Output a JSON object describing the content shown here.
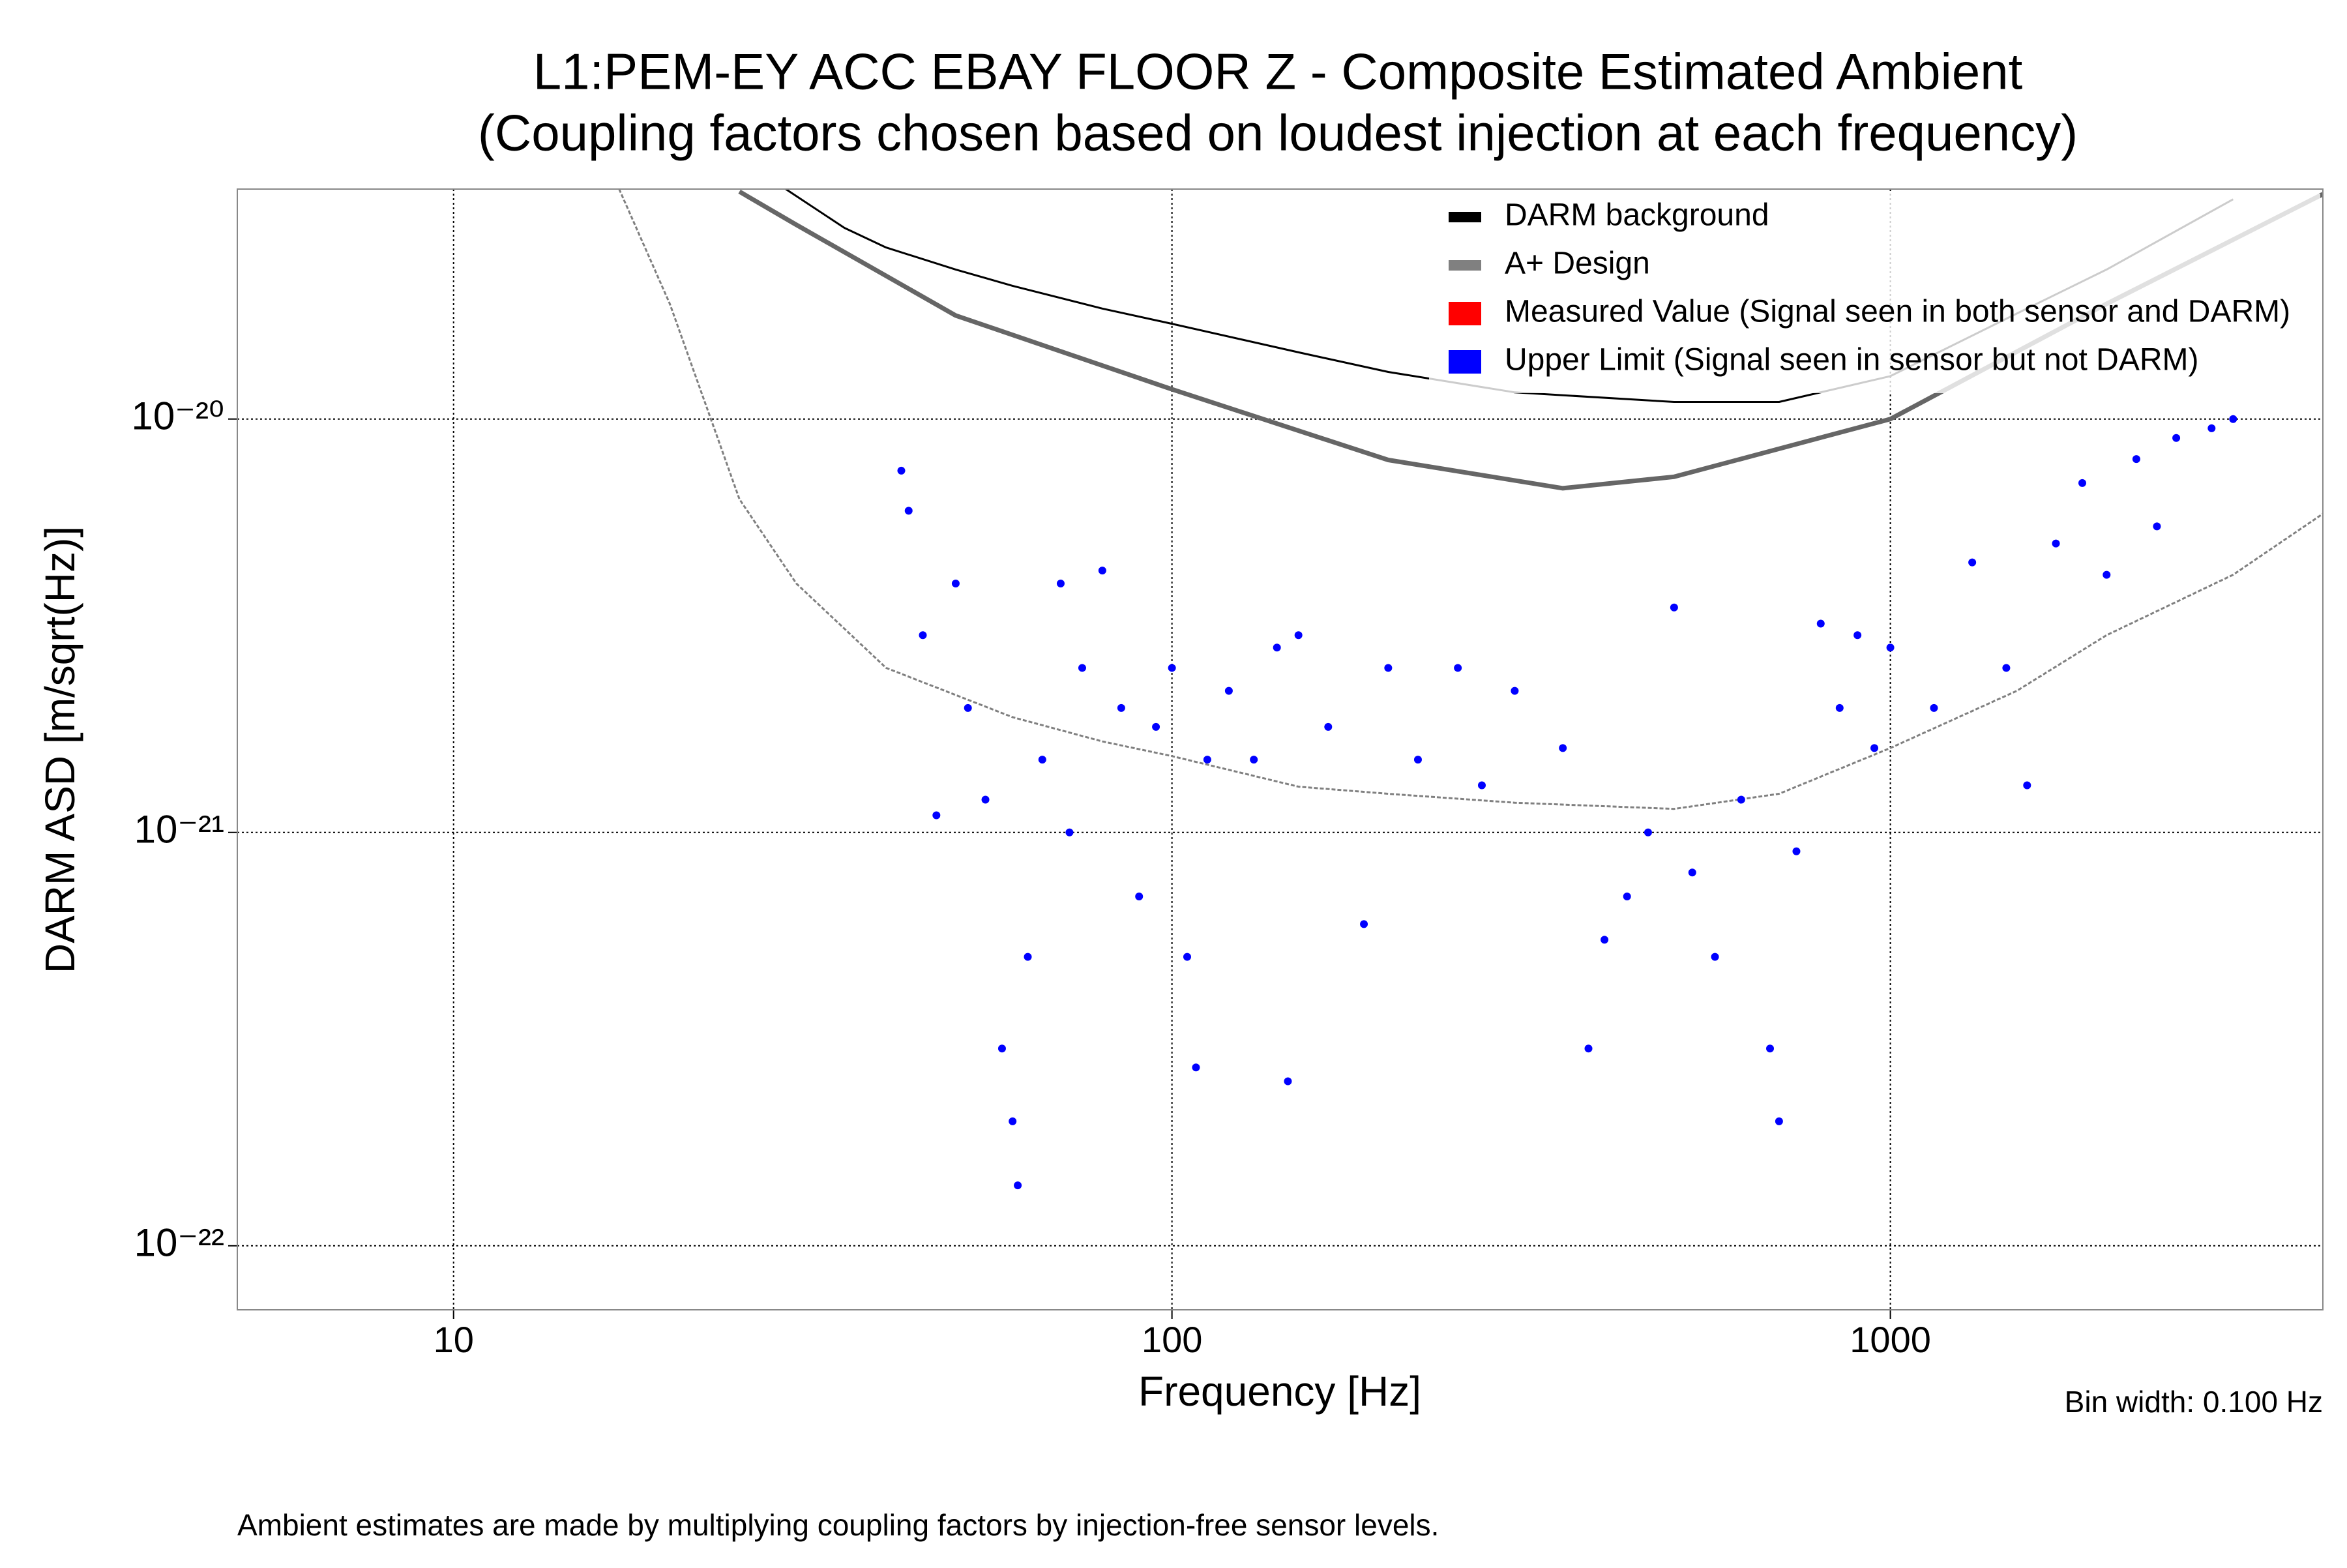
{
  "chart_data": {
    "type": "line",
    "title": "L1:PEM-EY ACC EBAY FLOOR Z - Composite Estimated Ambient",
    "subtitle": "(Coupling factors chosen based on loudest injection at each frequency)",
    "x_label": "Frequency [Hz]",
    "y_label": "DARM ASD [m/sqrt(Hz)]",
    "annotation": "Bin width: 0.100 Hz",
    "footnote": "Ambient estimates are made by multiplying coupling factors by injection-free sensor levels.",
    "x_log": true,
    "y_log": true,
    "grid": true,
    "legend_position": "upper right",
    "xlim": [
      5,
      4000
    ],
    "ylim": [
      7e-23,
      3.6e-20
    ],
    "xticks": [
      10,
      100,
      1000
    ],
    "yticks": [
      {
        "value": 1e-22,
        "label": "10⁻²²"
      },
      {
        "value": 1e-21,
        "label": "10⁻²¹"
      },
      {
        "value": 1e-20,
        "label": "10⁻²⁰"
      }
    ],
    "series": [
      {
        "kind": "line",
        "color": "#666666",
        "x": [
          25,
          30,
          50,
          100,
          200,
          350,
          500,
          1000,
          2000,
          4000
        ],
        "values": [
          3.55e-20,
          2.95e-20,
          1.78e-20,
          1.18e-20,
          7.96e-21,
          6.8e-21,
          7.25e-21,
          1e-20,
          1.9e-20,
          3.5e-20
        ]
      },
      {
        "name": "DARM background",
        "kind": "line",
        "color": "#000000",
        "x": [
          29,
          35,
          40,
          50,
          60,
          80,
          100,
          150,
          200,
          300,
          500,
          700,
          1000,
          1500,
          2000,
          3000
        ],
        "values": [
          3.6e-20,
          2.9e-20,
          2.6e-20,
          2.3e-20,
          2.1e-20,
          1.85e-20,
          1.7e-20,
          1.45e-20,
          1.3e-20,
          1.16e-20,
          1.1e-20,
          1.1e-20,
          1.27e-20,
          1.8e-20,
          2.3e-20,
          3.4e-20
        ]
      },
      {
        "name": "A+ Design",
        "kind": "line",
        "color": "#808080",
        "x": [
          17,
          20,
          25,
          30,
          40,
          60,
          80,
          100,
          150,
          200,
          300,
          500,
          700,
          1000,
          1500,
          2000,
          3000,
          4000
        ],
        "values": [
          3.6e-20,
          1.9e-20,
          6.4e-21,
          4e-21,
          2.5e-21,
          1.9e-21,
          1.66e-21,
          1.53e-21,
          1.29e-21,
          1.24e-21,
          1.18e-21,
          1.14e-21,
          1.24e-21,
          1.6e-21,
          2.2e-21,
          3e-21,
          4.2e-21,
          5.9e-21
        ]
      },
      {
        "name": "Measured Value (Signal seen in both sensor and DARM)",
        "kind": "scatter",
        "color": "#ff0000",
        "x": [],
        "values": []
      },
      {
        "name": "Upper Limit (Signal seen in sensor but not DARM)",
        "kind": "scatter",
        "color": "#0000ff",
        "x": [
          42,
          43,
          45,
          47,
          50,
          52,
          55,
          58,
          60,
          61,
          63,
          66,
          70,
          72,
          75,
          80,
          85,
          90,
          95,
          100,
          105,
          108,
          112,
          120,
          130,
          140,
          145,
          150,
          165,
          185,
          200,
          220,
          250,
          270,
          300,
          350,
          380,
          400,
          430,
          460,
          500,
          530,
          570,
          620,
          680,
          700,
          740,
          800,
          850,
          900,
          950,
          1000,
          1150,
          1300,
          1450,
          1550,
          1700,
          1850,
          2000,
          2200,
          2350,
          2500,
          2800,
          3000
        ],
        "values": [
          7.5e-21,
          6e-21,
          3e-21,
          1.1e-21,
          4e-21,
          2e-21,
          1.2e-21,
          3e-22,
          2e-22,
          1.4e-22,
          5e-22,
          1.5e-21,
          4e-21,
          1e-21,
          2.5e-21,
          4.3e-21,
          2e-21,
          7e-22,
          1.8e-21,
          2.5e-21,
          5e-22,
          2.7e-22,
          1.5e-21,
          2.2e-21,
          1.5e-21,
          2.8e-21,
          2.5e-22,
          3e-21,
          1.8e-21,
          6e-22,
          2.5e-21,
          1.5e-21,
          2.5e-21,
          1.3e-21,
          2.2e-21,
          1.6e-21,
          3e-22,
          5.5e-22,
          7e-22,
          1e-21,
          3.5e-21,
          8e-22,
          5e-22,
          1.2e-21,
          3e-22,
          2e-22,
          9e-22,
          3.2e-21,
          2e-21,
          3e-21,
          1.6e-21,
          2.8e-21,
          2e-21,
          4.5e-21,
          2.5e-21,
          1.3e-21,
          5e-21,
          7e-21,
          4.2e-21,
          8e-21,
          5.5e-21,
          9e-21,
          9.5e-21,
          1e-20
        ]
      }
    ]
  }
}
